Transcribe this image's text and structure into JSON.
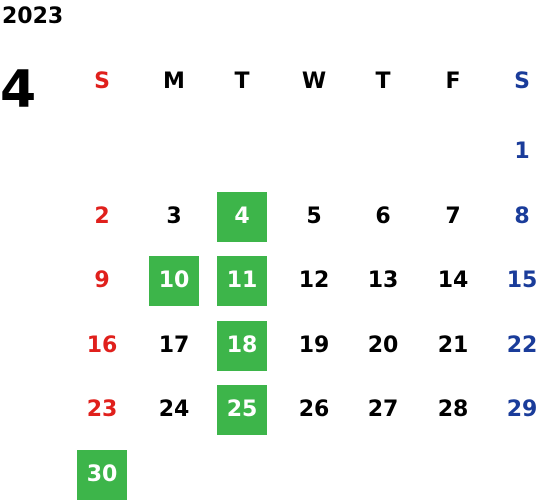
{
  "year": "2023",
  "month": "4",
  "weekdays": [
    "S",
    "M",
    "T",
    "W",
    "T",
    "F",
    "S"
  ],
  "weekday_colors": [
    "#e0201c",
    "#000000",
    "#000000",
    "#000000",
    "#000000",
    "#000000",
    "#1a3c9a"
  ],
  "highlight_color": "#3db54a",
  "weeks": [
    [
      null,
      null,
      null,
      null,
      null,
      null,
      {
        "day": 1
      }
    ],
    [
      {
        "day": 2
      },
      {
        "day": 3
      },
      {
        "day": 4,
        "highlight": true
      },
      {
        "day": 5
      },
      {
        "day": 6
      },
      {
        "day": 7
      },
      {
        "day": 8
      }
    ],
    [
      {
        "day": 9
      },
      {
        "day": 10,
        "highlight": true
      },
      {
        "day": 11,
        "highlight": true
      },
      {
        "day": 12
      },
      {
        "day": 13
      },
      {
        "day": 14
      },
      {
        "day": 15
      }
    ],
    [
      {
        "day": 16
      },
      {
        "day": 17
      },
      {
        "day": 18,
        "highlight": true
      },
      {
        "day": 19
      },
      {
        "day": 20
      },
      {
        "day": 21
      },
      {
        "day": 22
      }
    ],
    [
      {
        "day": 23
      },
      {
        "day": 24
      },
      {
        "day": 25,
        "highlight": true
      },
      {
        "day": 26
      },
      {
        "day": 27
      },
      {
        "day": 28
      },
      {
        "day": 29
      }
    ],
    [
      {
        "day": 30,
        "highlight": true
      },
      null,
      null,
      null,
      null,
      null,
      null
    ]
  ]
}
